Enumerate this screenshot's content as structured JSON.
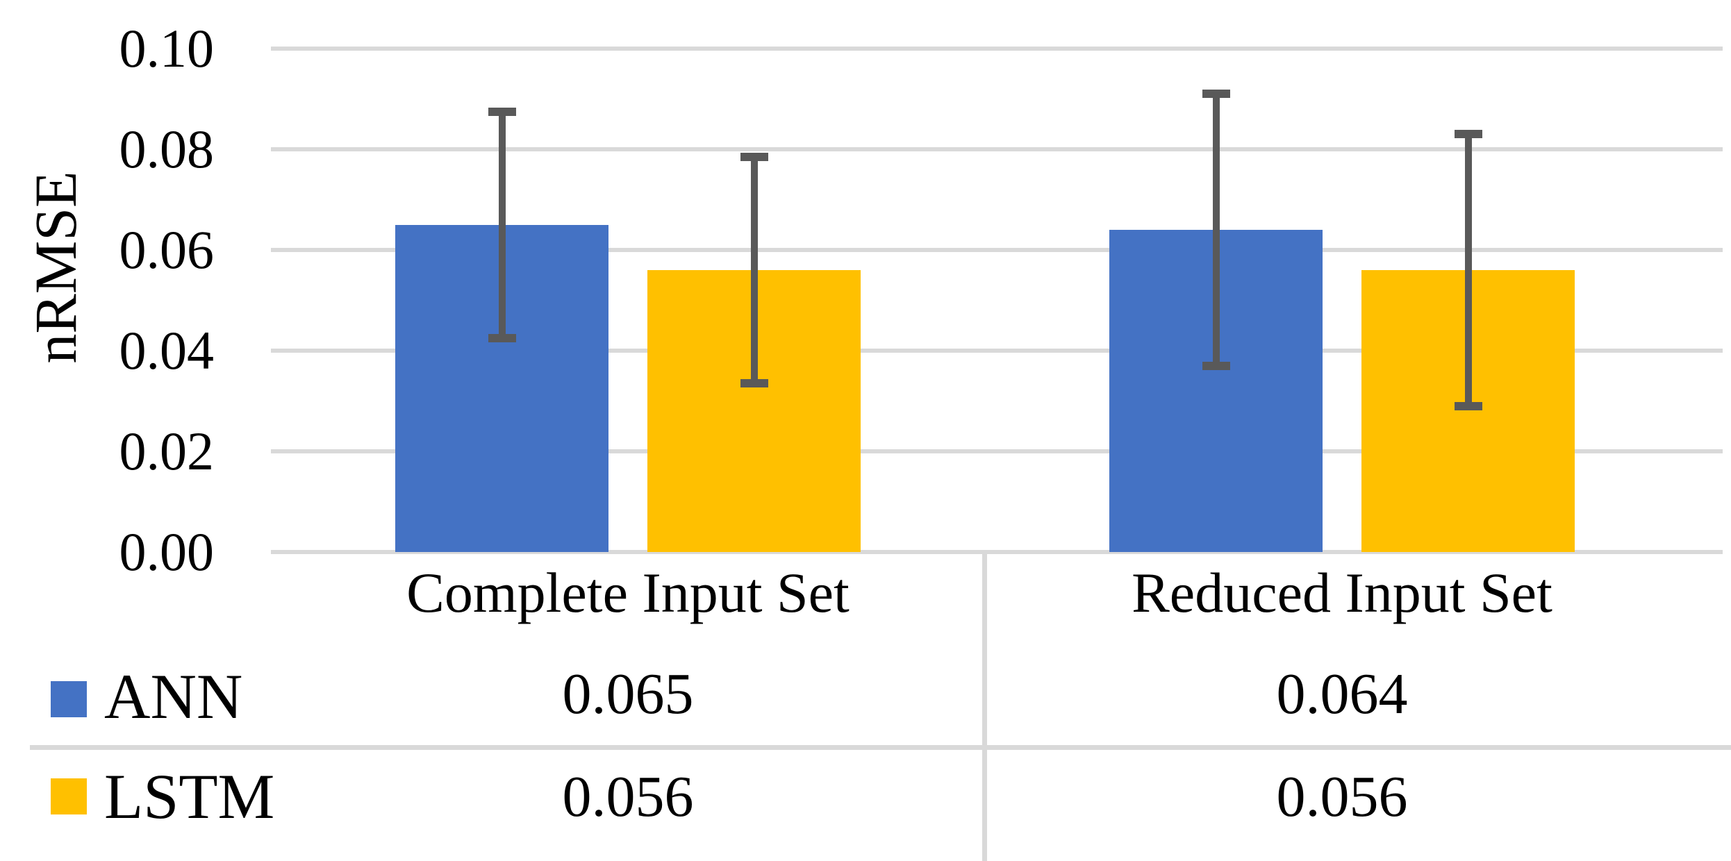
{
  "chart_data": {
    "type": "bar",
    "title": "",
    "xlabel": "",
    "ylabel": "nRMSE",
    "categories": [
      "Complete Input Set",
      "Reduced Input Set"
    ],
    "series": [
      {
        "name": "ANN",
        "color": "#4472C4",
        "values": [
          0.065,
          0.064
        ],
        "errors": [
          0.0225,
          0.027
        ]
      },
      {
        "name": "LSTM",
        "color": "#FFC000",
        "values": [
          0.056,
          0.056
        ],
        "errors": [
          0.0225,
          0.027
        ]
      }
    ],
    "ylim": [
      0.0,
      0.1
    ],
    "ytick_step": 0.02,
    "ytick_labels": [
      "0.00",
      "0.02",
      "0.04",
      "0.06",
      "0.08",
      "0.10"
    ],
    "grid": true,
    "legend_position": "data-table-left",
    "gridline_color": "#D9D9D9",
    "error_bar_color": "#595959",
    "data_table": {
      "rows": [
        {
          "legend": "ANN",
          "cells": [
            "0.065",
            "0.064"
          ]
        },
        {
          "legend": "LSTM",
          "cells": [
            "0.056",
            "0.056"
          ]
        }
      ]
    }
  }
}
